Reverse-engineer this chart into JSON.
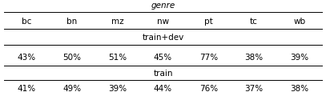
{
  "title": "genre",
  "columns": [
    "bc",
    "bn",
    "mz",
    "nw",
    "pt",
    "tc",
    "wb"
  ],
  "section1_label": "train+dev",
  "section1_values": [
    "43%",
    "50%",
    "51%",
    "45%",
    "77%",
    "38%",
    "39%"
  ],
  "section2_label": "train",
  "section2_values": [
    "41%",
    "49%",
    "39%",
    "44%",
    "76%",
    "37%",
    "38%"
  ],
  "bg_color": "#ffffff",
  "text_color": "#000000",
  "font_size": 7.5,
  "line_width": 0.7,
  "fig_width": 4.07,
  "fig_height": 1.16,
  "dpi": 100
}
